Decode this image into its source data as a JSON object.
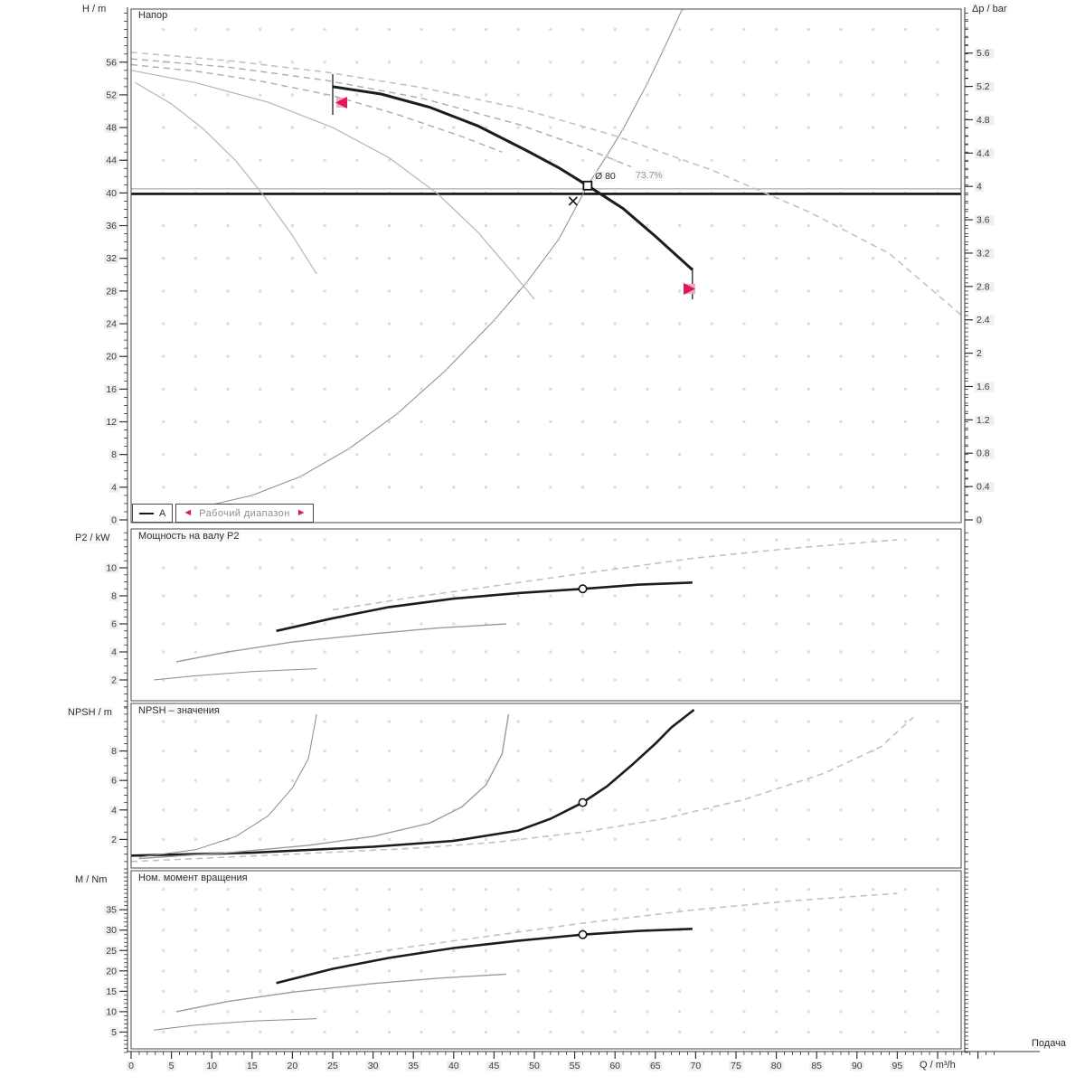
{
  "colors": {
    "accent_red": "#d81b60",
    "accent_pink": "#f4a7c6",
    "curve_black": "#1c1c1c",
    "curve_gray": "#9a9a9a",
    "curve_light_gray": "#c2c2c2",
    "grid_dot": "#dcdcdc",
    "axis": "#3a3a3a"
  },
  "panels": [
    {
      "key": "head",
      "title": "Напор",
      "left_axis": {
        "label": "H / m",
        "tick_labels": [
          "56",
          "52",
          "48",
          "44",
          "40",
          "36",
          "32",
          "28",
          "24",
          "20",
          "16",
          "12",
          "8",
          "4",
          "0"
        ]
      },
      "right_axis": {
        "label": "Δp / bar",
        "tick_labels": [
          "5.6",
          "5.2",
          "4.8",
          "4.4",
          "4",
          "3.6",
          "3.2",
          "2.8",
          "2.4",
          "2",
          "1.6",
          "1.2",
          "0.8",
          "0.4",
          "0"
        ]
      },
      "legend": {
        "curve_label": "A",
        "range_label": "Рабочий диапазон",
        "left_arrow": "◄",
        "right_arrow": "►"
      },
      "annotations": {
        "point_label": "Ø 80",
        "efficiency_label": "73.7%"
      }
    },
    {
      "key": "power",
      "title": "Мощность на валу P2",
      "left_axis": {
        "label": "P2 / kW",
        "tick_labels": [
          "10",
          "8",
          "6",
          "4",
          "2"
        ]
      }
    },
    {
      "key": "npsh",
      "title": "NPSH – значения",
      "left_axis": {
        "label": "NPSH / m",
        "tick_labels": [
          "8",
          "6",
          "4",
          "2"
        ]
      }
    },
    {
      "key": "torque",
      "title": "Ном. момент вращения",
      "left_axis": {
        "label": "M / Nm",
        "tick_labels": [
          "35",
          "30",
          "25",
          "20",
          "15",
          "10",
          "5"
        ]
      }
    }
  ],
  "x_axis": {
    "unit_label": "Q / m³/h",
    "name_label": "Подача",
    "tick_labels": [
      "0",
      "5",
      "10",
      "15",
      "20",
      "25",
      "30",
      "35",
      "40",
      "45",
      "50",
      "55",
      "60",
      "65",
      "70",
      "75",
      "80",
      "85",
      "90",
      "95"
    ]
  },
  "chart_data": [
    {
      "type": "line",
      "title": "Напор",
      "xlabel": "Q / m³/h",
      "ylabel": "H / m",
      "ylabel_right": "Δp / bar",
      "xlim": [
        0,
        103
      ],
      "ylim": [
        0,
        62.8
      ],
      "ylim_right": [
        0,
        6.1
      ],
      "grid": "dotted",
      "reference_head_line": 40,
      "series": [
        {
          "name": "curve_A",
          "role": "main",
          "points": [
            [
              25,
              53
            ],
            [
              31,
              52.1
            ],
            [
              37,
              50.5
            ],
            [
              43,
              48.2
            ],
            [
              49,
              45.2
            ],
            [
              53,
              43.1
            ],
            [
              56.6,
              40.9
            ],
            [
              61,
              38.1
            ],
            [
              65,
              34.7
            ],
            [
              69.6,
              30.6
            ]
          ]
        },
        {
          "name": "system_curve",
          "role": "system",
          "points": [
            [
              8,
              1.4
            ],
            [
              15,
              3
            ],
            [
              21,
              5.3
            ],
            [
              27,
              8.7
            ],
            [
              33,
              13
            ],
            [
              39,
              18.3
            ],
            [
              45,
              24.4
            ],
            [
              49,
              29
            ],
            [
              53,
              34.3
            ],
            [
              56.6,
              40.9
            ],
            [
              59,
              44.6
            ],
            [
              61,
              47.8
            ],
            [
              64,
              53.4
            ],
            [
              66,
              57.5
            ],
            [
              68.3,
              62.4
            ]
          ]
        },
        {
          "name": "speed_curve_max",
          "role": "speed_max_dash",
          "points": [
            [
              0,
              57.2
            ],
            [
              12,
              56.2
            ],
            [
              24,
              54.8
            ],
            [
              36,
              52.9
            ],
            [
              48,
              50.4
            ],
            [
              60,
              47
            ],
            [
              72,
              42.8
            ],
            [
              84,
              37.7
            ],
            [
              94,
              32.6
            ],
            [
              103,
              25
            ]
          ]
        },
        {
          "name": "speed_curve_2",
          "role": "speed_dash",
          "points": [
            [
              0,
              56.4
            ],
            [
              12,
              55.4
            ],
            [
              24,
              53.8
            ],
            [
              36,
              51.6
            ],
            [
              48,
              48.4
            ],
            [
              56,
              45.6
            ],
            [
              62,
              43.2
            ]
          ]
        },
        {
          "name": "speed_curve_3",
          "role": "speed_dash",
          "points": [
            [
              0,
              55.7
            ],
            [
              8,
              54.9
            ],
            [
              16,
              53.7
            ],
            [
              25,
              51.9
            ],
            [
              33,
              49.6
            ],
            [
              41,
              46.9
            ],
            [
              46,
              45
            ]
          ]
        },
        {
          "name": "speed_curve_4",
          "role": "speed_solid",
          "points": [
            [
              0,
              55
            ],
            [
              8,
              53.5
            ],
            [
              17,
              51.1
            ],
            [
              25,
              48
            ],
            [
              32,
              44.3
            ],
            [
              38,
              39.9
            ],
            [
              43,
              35.2
            ],
            [
              47,
              30.6
            ],
            [
              50,
              27
            ]
          ]
        },
        {
          "name": "speed_curve_5",
          "role": "speed_solid",
          "points": [
            [
              0.5,
              53.5
            ],
            [
              5,
              50.9
            ],
            [
              9,
              47.8
            ],
            [
              13,
              43.9
            ],
            [
              16.5,
              39.6
            ],
            [
              20,
              34.8
            ],
            [
              23,
              30.1
            ]
          ]
        }
      ],
      "operating_point": {
        "q": 56.6,
        "h": 40.9,
        "label": "Ø 80",
        "efficiency": "73.7%"
      },
      "requested_point": {
        "q": 54.8,
        "h": 39
      },
      "working_range": {
        "q_min": 25,
        "q_max": 69.6
      }
    },
    {
      "type": "line",
      "title": "Мощность на валу P2",
      "xlabel": "Q / m³/h",
      "ylabel": "P2 / kW",
      "xlim": [
        0,
        103
      ],
      "ylim": [
        0,
        12.8
      ],
      "series": [
        {
          "name": "power_max_speed",
          "role": "max_dash",
          "points": [
            [
              25,
              7
            ],
            [
              35,
              7.9
            ],
            [
              45,
              8.7
            ],
            [
              56,
              9.6
            ],
            [
              70,
              10.7
            ],
            [
              82,
              11.4
            ],
            [
              95,
              12
            ]
          ]
        },
        {
          "name": "power_curve_A",
          "role": "main2",
          "points": [
            [
              18,
              5.5
            ],
            [
              25,
              6.4
            ],
            [
              32,
              7.2
            ],
            [
              40,
              7.8
            ],
            [
              48,
              8.2
            ],
            [
              56,
              8.5
            ],
            [
              63,
              8.8
            ],
            [
              69.6,
              8.95
            ]
          ]
        },
        {
          "name": "power_reduced_1",
          "role": "reduced",
          "points": [
            [
              5.6,
              3.3
            ],
            [
              12,
              4
            ],
            [
              20,
              4.7
            ],
            [
              30,
              5.3
            ],
            [
              38,
              5.7
            ],
            [
              46.5,
              6
            ]
          ]
        },
        {
          "name": "power_reduced_2",
          "role": "reduced2",
          "points": [
            [
              2.8,
              2
            ],
            [
              8,
              2.3
            ],
            [
              15,
              2.6
            ],
            [
              23,
              2.8
            ]
          ]
        }
      ],
      "operating_point": {
        "q": 56,
        "value": 8.5
      }
    },
    {
      "type": "line",
      "title": "NPSH – значения",
      "xlabel": "Q / m³/h",
      "ylabel": "NPSH / m",
      "xlim": [
        0,
        103
      ],
      "ylim": [
        0,
        11.2
      ],
      "series": [
        {
          "name": "npsh_dashed",
          "role": "max_dash",
          "points": [
            [
              0,
              0.5
            ],
            [
              20,
              1
            ],
            [
              35,
              1.4
            ],
            [
              45,
              1.8
            ],
            [
              56,
              2.5
            ],
            [
              66,
              3.4
            ],
            [
              76,
              4.7
            ],
            [
              86,
              6.5
            ],
            [
              93,
              8.3
            ],
            [
              97,
              10.3
            ]
          ]
        },
        {
          "name": "npsh_curve_A",
          "role": "main2",
          "points": [
            [
              0,
              0.9
            ],
            [
              15,
              1.1
            ],
            [
              30,
              1.5
            ],
            [
              40,
              1.9
            ],
            [
              48,
              2.6
            ],
            [
              52,
              3.4
            ],
            [
              56,
              4.5
            ],
            [
              59,
              5.6
            ],
            [
              62,
              7
            ],
            [
              65,
              8.5
            ],
            [
              67,
              9.6
            ],
            [
              69.8,
              10.8
            ]
          ]
        },
        {
          "name": "npsh_reduced_1",
          "role": "reduced2",
          "points": [
            [
              1,
              0.8
            ],
            [
              8,
              1.3
            ],
            [
              13,
              2.2
            ],
            [
              17,
              3.6
            ],
            [
              20,
              5.5
            ],
            [
              22,
              7.5
            ],
            [
              23,
              10.5
            ]
          ]
        },
        {
          "name": "npsh_reduced_2",
          "role": "reduced",
          "points": [
            [
              1,
              0.7
            ],
            [
              12,
              1.1
            ],
            [
              22,
              1.6
            ],
            [
              30,
              2.2
            ],
            [
              37,
              3.1
            ],
            [
              41,
              4.2
            ],
            [
              44,
              5.7
            ],
            [
              46,
              7.8
            ],
            [
              46.8,
              10.5
            ]
          ]
        }
      ],
      "operating_point": {
        "q": 56,
        "value": 4.5
      }
    },
    {
      "type": "line",
      "title": "Ном. момент вращения",
      "xlabel": "Q / m³/h",
      "ylabel": "M / Nm",
      "xlim": [
        0,
        103
      ],
      "ylim": [
        0,
        44.5
      ],
      "series": [
        {
          "name": "torque_max_speed",
          "role": "max_dash",
          "points": [
            [
              25,
              23
            ],
            [
              35,
              26
            ],
            [
              45,
              28.7
            ],
            [
              56,
              31.7
            ],
            [
              70,
              35
            ],
            [
              82,
              37.2
            ],
            [
              95,
              39
            ]
          ]
        },
        {
          "name": "torque_curve_A",
          "role": "main2",
          "points": [
            [
              18,
              17
            ],
            [
              25,
              20.5
            ],
            [
              32,
              23.2
            ],
            [
              40,
              25.6
            ],
            [
              48,
              27.4
            ],
            [
              56,
              28.9
            ],
            [
              63,
              29.8
            ],
            [
              69.6,
              30.3
            ]
          ]
        },
        {
          "name": "torque_reduced_1",
          "role": "reduced",
          "points": [
            [
              5.6,
              10
            ],
            [
              12,
              12.5
            ],
            [
              20,
              14.8
            ],
            [
              30,
              16.9
            ],
            [
              38,
              18.2
            ],
            [
              46.5,
              19.2
            ]
          ]
        },
        {
          "name": "torque_reduced_2",
          "role": "reduced2",
          "points": [
            [
              2.8,
              5.5
            ],
            [
              8,
              6.7
            ],
            [
              15,
              7.7
            ],
            [
              23,
              8.3
            ]
          ]
        }
      ],
      "operating_point": {
        "q": 56,
        "value": 28.9
      }
    }
  ]
}
